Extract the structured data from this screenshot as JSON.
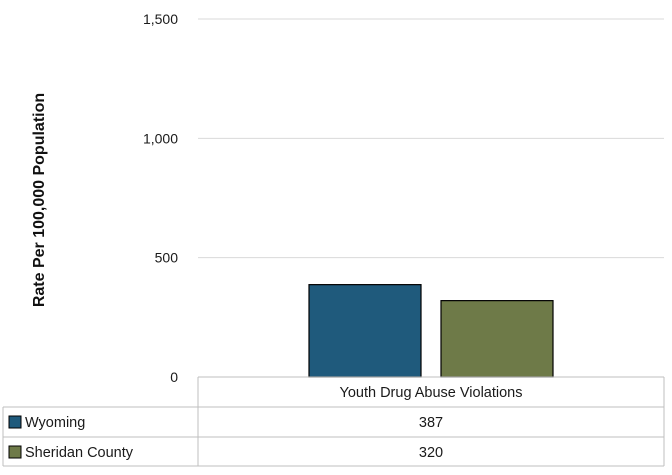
{
  "chart_data": {
    "type": "bar",
    "categories": [
      "Youth Drug Abuse Violations"
    ],
    "series": [
      {
        "name": "Wyoming",
        "values": [
          387
        ],
        "color": "#1f5a7c"
      },
      {
        "name": "Sheridan County",
        "values": [
          320
        ],
        "color": "#6e7a48"
      }
    ],
    "ylabel": "Rate Per 100,000 Population",
    "ylim": [
      0,
      1500
    ],
    "yticks": [
      0,
      500,
      1000,
      1500
    ],
    "ytick_labels": [
      "0",
      "500",
      "1,000",
      "1,500"
    ],
    "data_table": true,
    "grid": true
  }
}
